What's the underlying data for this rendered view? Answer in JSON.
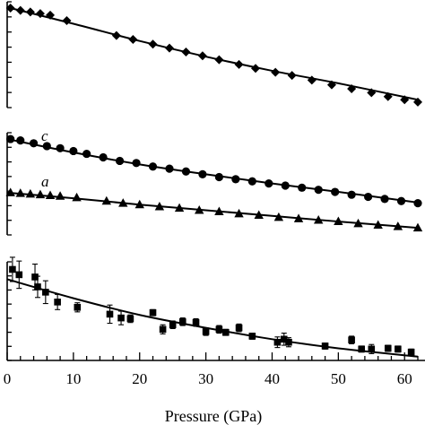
{
  "chart_data": [
    {
      "type": "line",
      "xlim": [
        0,
        62
      ],
      "grid": false,
      "series": [
        {
          "marker": "diamond",
          "points": [
            [
              0.5,
              24.2
            ],
            [
              2,
              23.9
            ],
            [
              3.5,
              23.7
            ],
            [
              5,
              23.5
            ],
            [
              6.5,
              23.3
            ],
            [
              9,
              22.6
            ],
            [
              16.5,
              20.7
            ],
            [
              19,
              20.2
            ],
            [
              22,
              19.6
            ],
            [
              24.5,
              19.1
            ],
            [
              27,
              18.6
            ],
            [
              29.5,
              18.1
            ],
            [
              32,
              17.6
            ],
            [
              35,
              17.0
            ],
            [
              37.5,
              16.5
            ],
            [
              40.5,
              16.0
            ],
            [
              43,
              15.6
            ],
            [
              46,
              15.0
            ],
            [
              49,
              14.4
            ],
            [
              52,
              13.9
            ],
            [
              55,
              13.4
            ],
            [
              57.5,
              12.9
            ],
            [
              60,
              12.5
            ],
            [
              62,
              12.2
            ]
          ],
          "fit": [
            [
              0,
              24.3
            ],
            [
              10,
              22.2
            ],
            [
              20,
              20.0
            ],
            [
              30,
              18.0
            ],
            [
              40,
              16.2
            ],
            [
              50,
              14.6
            ],
            [
              62,
              12.5
            ]
          ]
        }
      ]
    },
    {
      "type": "line",
      "xlim": [
        0,
        62
      ],
      "grid": false,
      "annotations": [
        "c",
        "a"
      ],
      "series": [
        {
          "marker": "circle",
          "points": [
            [
              0.5,
              23.6
            ],
            [
              2,
              23.4
            ],
            [
              4,
              23.0
            ],
            [
              6,
              22.6
            ],
            [
              8,
              22.3
            ],
            [
              10,
              21.9
            ],
            [
              12,
              21.5
            ],
            [
              14.5,
              21.0
            ],
            [
              17,
              20.5
            ],
            [
              19.5,
              20.2
            ],
            [
              22,
              19.7
            ],
            [
              24.5,
              19.4
            ],
            [
              27,
              19.0
            ],
            [
              29.5,
              18.6
            ],
            [
              32,
              18.2
            ],
            [
              34.5,
              17.9
            ],
            [
              37,
              17.6
            ],
            [
              39.5,
              17.3
            ],
            [
              42,
              17.0
            ],
            [
              44.5,
              16.7
            ],
            [
              47,
              16.4
            ],
            [
              49.5,
              16.1
            ],
            [
              52,
              15.7
            ],
            [
              54.5,
              15.4
            ],
            [
              57,
              15.1
            ],
            [
              59.5,
              14.8
            ],
            [
              62,
              14.5
            ]
          ],
          "fit": [
            [
              0,
              23.6
            ],
            [
              10,
              21.7
            ],
            [
              20,
              20.0
            ],
            [
              30,
              18.6
            ],
            [
              40,
              17.3
            ],
            [
              50,
              16.1
            ],
            [
              62,
              14.6
            ]
          ]
        },
        {
          "marker": "triangle",
          "points": [
            [
              0.5,
              16.0
            ],
            [
              2,
              15.9
            ],
            [
              3.5,
              15.8
            ],
            [
              5,
              15.7
            ],
            [
              6.5,
              15.6
            ],
            [
              8,
              15.5
            ],
            [
              10.5,
              15.3
            ],
            [
              15,
              14.8
            ],
            [
              17.5,
              14.5
            ],
            [
              20,
              14.3
            ],
            [
              23,
              14.0
            ],
            [
              26,
              13.8
            ],
            [
              29,
              13.5
            ],
            [
              32,
              13.3
            ],
            [
              35,
              13.0
            ],
            [
              38,
              12.8
            ],
            [
              41,
              12.5
            ],
            [
              44,
              12.3
            ],
            [
              47,
              12.1
            ],
            [
              50,
              11.9
            ],
            [
              53,
              11.6
            ],
            [
              56,
              11.4
            ],
            [
              59,
              11.2
            ],
            [
              62,
              11.0
            ]
          ],
          "fit": [
            [
              0,
              16.0
            ],
            [
              10,
              15.2
            ],
            [
              20,
              14.3
            ],
            [
              30,
              13.5
            ],
            [
              40,
              12.7
            ],
            [
              50,
              11.9
            ],
            [
              62,
              11.0
            ]
          ]
        }
      ]
    },
    {
      "type": "scatter",
      "xlim": [
        0,
        62
      ],
      "xlabel": "Pressure (GPa)",
      "xticks": [
        0,
        10,
        20,
        30,
        40,
        50,
        60
      ],
      "grid": false,
      "series": [
        {
          "marker": "square",
          "points": [
            [
              0.8,
              37.5,
              1.6
            ],
            [
              1.8,
              36.8,
              1.8
            ],
            [
              4.2,
              36.5,
              1.7
            ],
            [
              4.6,
              35.2,
              1.4
            ],
            [
              5.8,
              34.5,
              1.5
            ],
            [
              7.6,
              33.2,
              1.0
            ],
            [
              10.6,
              32.5,
              0.6
            ],
            [
              15.5,
              31.6,
              1.2
            ],
            [
              17.2,
              31.1,
              0.9
            ],
            [
              18.6,
              31.0,
              0.5
            ],
            [
              22,
              31.8,
              0.4
            ],
            [
              23.5,
              29.6,
              0.6
            ],
            [
              25,
              30.2,
              0.5
            ],
            [
              26.5,
              30.6,
              0.5
            ],
            [
              28.5,
              30.5,
              0.5
            ],
            [
              30,
              29.3,
              0.5
            ],
            [
              32,
              29.6,
              0.5
            ],
            [
              33,
              29.2,
              0.4
            ],
            [
              35,
              29.8,
              0.5
            ],
            [
              37,
              28.7,
              0.4
            ],
            [
              40.8,
              27.9,
              0.7
            ],
            [
              41.8,
              28.3,
              0.8
            ],
            [
              42.5,
              27.9,
              0.6
            ],
            [
              48,
              27.4,
              0.4
            ],
            [
              52,
              28.2,
              0.5
            ],
            [
              53.5,
              27.0,
              0.4
            ],
            [
              55,
              27.0,
              0.6
            ],
            [
              57.5,
              27.1,
              0.4
            ],
            [
              59,
              27.0,
              0.4
            ],
            [
              61,
              26.6,
              0.4
            ]
          ],
          "fit": [
            [
              0,
              36.2
            ],
            [
              10,
              33.7
            ],
            [
              20,
              31.5
            ],
            [
              30,
              29.8
            ],
            [
              40,
              28.3
            ],
            [
              50,
              27.1
            ],
            [
              62,
              26.0
            ]
          ]
        }
      ]
    }
  ]
}
